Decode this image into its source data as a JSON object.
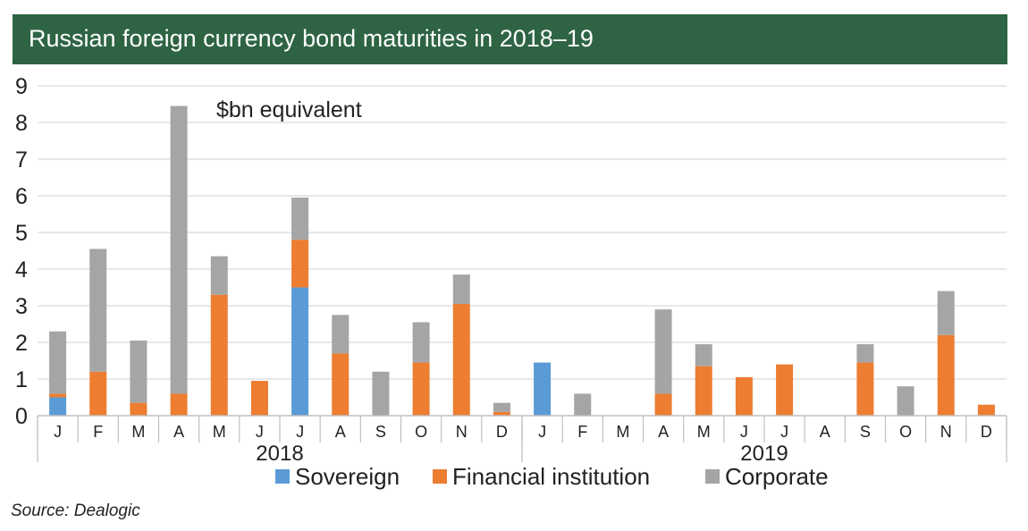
{
  "title": "Russian foreign currency bond maturities in 2018–19",
  "source": "Source: Dealogic",
  "chart_data": {
    "type": "bar",
    "stacked": true,
    "title": "Russian foreign currency bond maturities in 2018–19",
    "annotation": "$bn equivalent",
    "categories": [
      "J",
      "F",
      "M",
      "A",
      "M",
      "J",
      "J",
      "A",
      "S",
      "O",
      "N",
      "D",
      "J",
      "F",
      "M",
      "A",
      "M",
      "J",
      "J",
      "A",
      "S",
      "O",
      "N",
      "D"
    ],
    "year_groups": [
      {
        "label": "2018",
        "start": 0,
        "end": 11
      },
      {
        "label": "2019",
        "start": 12,
        "end": 23
      }
    ],
    "ylim": [
      0,
      9
    ],
    "yticks": [
      "0",
      "1",
      "2",
      "3",
      "4",
      "5",
      "6",
      "7",
      "8",
      "9"
    ],
    "grid": true,
    "legend_position": "bottom",
    "series": [
      {
        "name": "Sovereign",
        "color": "#5b9bd5",
        "values": [
          0.5,
          0,
          0,
          0,
          0,
          0,
          3.5,
          0,
          0,
          0,
          0,
          0,
          1.45,
          0,
          0,
          0,
          0,
          0,
          0,
          0,
          0,
          0,
          0,
          0
        ]
      },
      {
        "name": "Financial institution",
        "color": "#ed7d31",
        "values": [
          0.1,
          1.2,
          0.35,
          0.6,
          3.3,
          0.95,
          1.3,
          1.7,
          0,
          1.45,
          3.05,
          0.1,
          0,
          0,
          0,
          0.6,
          1.35,
          1.05,
          1.4,
          0,
          1.45,
          0,
          2.2,
          0.3
        ]
      },
      {
        "name": "Corporate",
        "color": "#a5a5a5",
        "values": [
          1.7,
          3.35,
          1.7,
          7.85,
          1.05,
          0,
          1.15,
          1.05,
          1.2,
          1.1,
          0.8,
          0.25,
          0,
          0.6,
          0,
          2.3,
          0.6,
          0,
          0,
          0,
          0.5,
          0.8,
          1.2,
          0
        ]
      }
    ]
  }
}
